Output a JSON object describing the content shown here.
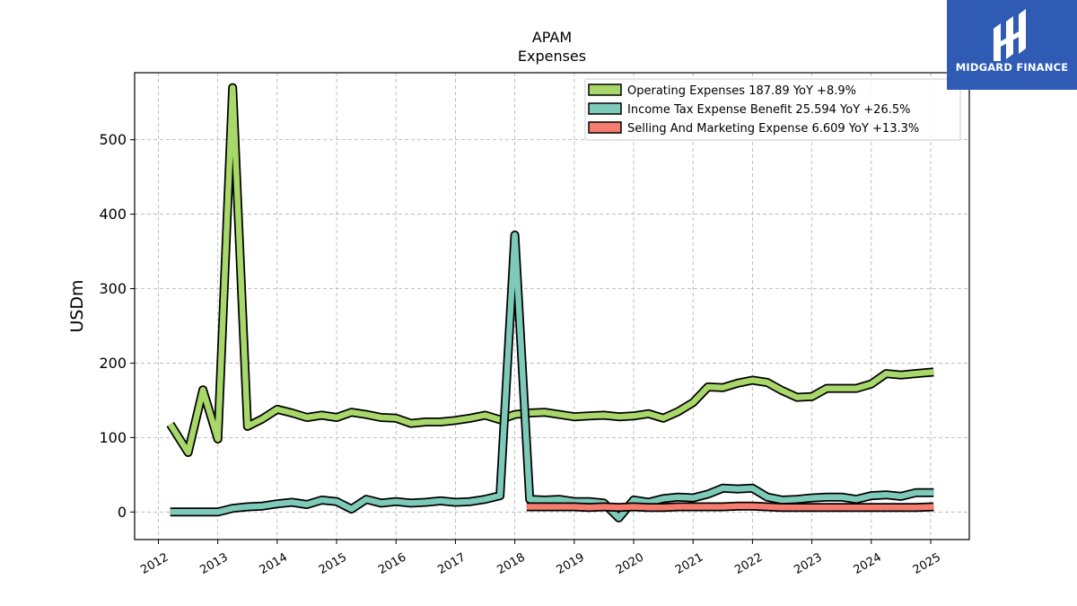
{
  "chart_data": {
    "type": "line",
    "title": "APAM",
    "subtitle": "Expenses",
    "ylabel": "USDm",
    "xlabel": "",
    "ylim": [
      -37,
      590
    ],
    "xlim": [
      2011.6,
      2025.65
    ],
    "yticks": [
      0,
      100,
      200,
      300,
      400,
      500
    ],
    "xticks": [
      "2012",
      "2013",
      "2014",
      "2015",
      "2016",
      "2017",
      "2018",
      "2019",
      "2020",
      "2021",
      "2022",
      "2023",
      "2024",
      "2025"
    ],
    "grid": true,
    "legend_position": "top-right",
    "series": [
      {
        "name": "Operating Expenses  187.89 YoY +8.9%",
        "color": "#a8d86a",
        "x": [
          2012.2,
          2012.5,
          2012.75,
          2013.0,
          2013.25,
          2013.5,
          2013.75,
          2014.0,
          2014.25,
          2014.5,
          2014.75,
          2015.0,
          2015.25,
          2015.5,
          2015.75,
          2016.0,
          2016.25,
          2016.5,
          2016.75,
          2017.0,
          2017.25,
          2017.5,
          2017.75,
          2018.0,
          2018.25,
          2018.5,
          2018.75,
          2019.0,
          2019.25,
          2019.5,
          2019.75,
          2020.0,
          2020.25,
          2020.5,
          2020.75,
          2021.0,
          2021.25,
          2021.5,
          2021.75,
          2022.0,
          2022.25,
          2022.5,
          2022.75,
          2023.0,
          2023.25,
          2023.5,
          2023.75,
          2024.0,
          2024.25,
          2024.5,
          2024.75,
          2025.05
        ],
        "values": [
          118,
          80,
          164,
          98,
          570,
          115,
          125,
          138,
          133,
          127,
          130,
          127,
          134,
          131,
          127,
          126,
          119,
          121,
          121,
          123,
          126,
          130,
          124,
          131,
          133,
          134,
          131,
          128,
          129,
          130,
          128,
          129,
          132,
          126,
          135,
          147,
          168,
          167,
          173,
          177,
          174,
          163,
          154,
          155,
          166,
          166,
          166,
          172,
          186,
          184,
          186,
          188
        ]
      },
      {
        "name": "Income Tax Expense Benefit  25.594 YoY +26.5%",
        "color": "#7ecab8",
        "x": [
          2012.2,
          2012.5,
          2012.75,
          2013.0,
          2013.25,
          2013.5,
          2013.75,
          2014.0,
          2014.25,
          2014.5,
          2014.75,
          2015.0,
          2015.25,
          2015.5,
          2015.75,
          2016.0,
          2016.25,
          2016.5,
          2016.75,
          2017.0,
          2017.25,
          2017.5,
          2017.75,
          2018.0,
          2018.25,
          2018.5,
          2018.75,
          2019.0,
          2019.25,
          2019.5,
          2019.75,
          2020.0,
          2020.25,
          2020.5,
          2020.75,
          2021.0,
          2021.25,
          2021.5,
          2021.75,
          2022.0,
          2022.25,
          2022.5,
          2022.75,
          2023.0,
          2023.25,
          2023.5,
          2023.75,
          2024.0,
          2024.25,
          2024.5,
          2024.75,
          2025.05
        ],
        "values": [
          0,
          0,
          0,
          0,
          5,
          7,
          8,
          11,
          13,
          10,
          16,
          14,
          4,
          17,
          12,
          14,
          12,
          13,
          15,
          13,
          14,
          17,
          22,
          372,
          17,
          16,
          17,
          14,
          14,
          12,
          -8,
          16,
          13,
          18,
          20,
          19,
          24,
          32,
          31,
          32,
          20,
          16,
          17,
          19,
          20,
          20,
          17,
          22,
          23,
          21,
          26,
          26
        ]
      },
      {
        "name": "Selling And Marketing Expense  6.609 YoY +13.3%",
        "color": "#f47d6f",
        "x": [
          2018.2,
          2018.5,
          2018.75,
          2019.0,
          2019.25,
          2019.5,
          2019.75,
          2020.0,
          2020.25,
          2020.5,
          2020.75,
          2021.0,
          2021.25,
          2021.5,
          2021.75,
          2022.0,
          2022.25,
          2022.5,
          2022.75,
          2023.0,
          2023.25,
          2023.5,
          2023.75,
          2024.0,
          2024.25,
          2024.5,
          2024.75,
          2025.05
        ],
        "values": [
          7,
          7,
          7,
          7,
          6,
          7,
          6,
          7,
          6,
          6,
          7,
          7,
          7,
          7,
          8,
          8,
          7,
          6,
          6,
          6,
          6,
          6,
          6,
          6,
          6,
          6,
          6,
          7
        ]
      }
    ]
  },
  "logo": {
    "text": "MIDGARD FINANCE",
    "background": "#2f5bb5"
  }
}
